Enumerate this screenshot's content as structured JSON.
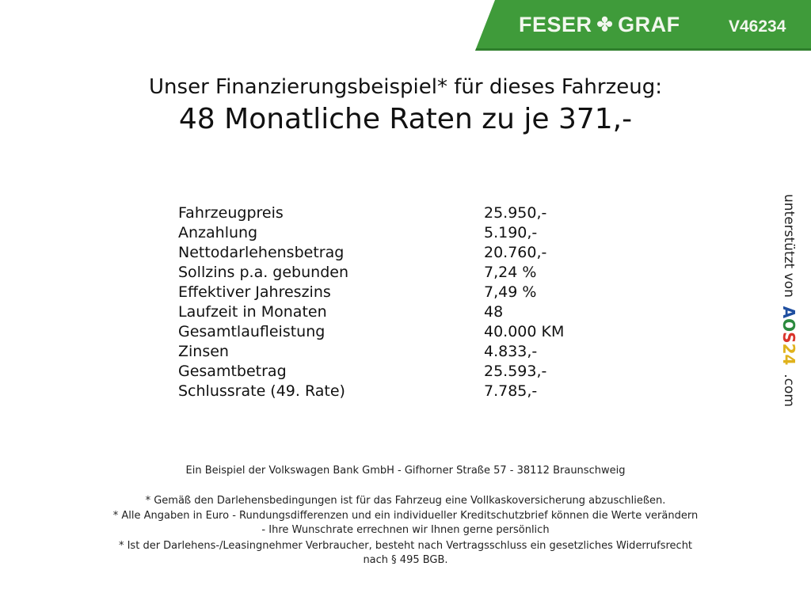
{
  "banner": {
    "brand_left": "FESER",
    "brand_right": "GRAF",
    "logo_icon": "clover-icon",
    "code": "V46234",
    "color": "#3f9b3a"
  },
  "title": {
    "line1": "Unser Finanzierungsbeispiel* für dieses Fahrzeug:",
    "line2": "48 Monatliche Raten zu je 371,-"
  },
  "rows": [
    {
      "label": "Fahrzeugpreis",
      "value": "25.950,-"
    },
    {
      "label": "Anzahlung",
      "value": "5.190,-"
    },
    {
      "label": "Nettodarlehensbetrag",
      "value": "20.760,-"
    },
    {
      "label": "Sollzins p.a. gebunden",
      "value": "7,24 %"
    },
    {
      "label": "Effektiver Jahreszins",
      "value": "7,49 %"
    },
    {
      "label": "Laufzeit in Monaten",
      "value": "48"
    },
    {
      "label": "Gesamtlaufleistung",
      "value": "40.000 KM"
    },
    {
      "label": "Zinsen",
      "value": "4.833,-"
    },
    {
      "label": "Gesamtbetrag",
      "value": "25.593,-"
    },
    {
      "label": "Schlussrate (49. Rate)",
      "value": "7.785,-"
    }
  ],
  "side": {
    "prefix": "unterstützt von",
    "logo": [
      "A",
      "O",
      "S",
      "2",
      "4"
    ],
    "suffix": ".com",
    "logo_colors": [
      "#1f4fa0",
      "#2b8a3e",
      "#d9342b",
      "#e0b21c",
      "#e0b21c"
    ]
  },
  "footer": {
    "bank": "Ein Beispiel der Volkswagen Bank GmbH - Gifhorner Straße 57 - 38112 Braunschweig",
    "note1": "* Gemäß den Darlehensbedingungen ist für das Fahrzeug eine Vollkaskoversicherung abzuschließen.",
    "note2a": "* Alle Angaben in Euro - Rundungsdifferenzen und ein individueller Kreditschutzbrief können die Werte verändern",
    "note2b": "- Ihre Wunschrate errechnen wir Ihnen gerne persönlich",
    "note3a": "* Ist der Darlehens-/Leasingnehmer Verbraucher, besteht nach Vertragsschluss ein gesetzliches Widerrufsrecht",
    "note3b": "nach § 495 BGB."
  }
}
